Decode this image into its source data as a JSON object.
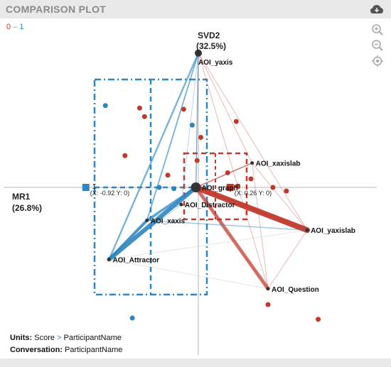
{
  "header": {
    "title": "COMPARISON PLOT",
    "icons": [
      "cloud-download-icon",
      "zoom-in-icon",
      "zoom-out-icon",
      "target-icon"
    ]
  },
  "legend": {
    "low": "0",
    "dash": "–",
    "high": "1",
    "low_color": "#c0392b",
    "high_color": "#2e86c1"
  },
  "footer": {
    "units_label": "Units:",
    "units_value": "Score",
    "units_arrow": ">",
    "units_value2": "ParticipantName",
    "conv_label": "Conversation:",
    "conv_value": "ParticipantName"
  },
  "chart_data": {
    "type": "scatter",
    "axes": {
      "x_label_line1": "MR1",
      "x_label_line2": "(26.8%)",
      "y_label_line1": "SVD2",
      "y_label_line2": "(32.5%)",
      "xlim": [
        -1.6,
        1.6
      ],
      "ylim": [
        -1.3,
        1.1
      ]
    },
    "centers": [
      {
        "name": "1",
        "x": -0.92,
        "y": 0,
        "coord_label": "(X: -0.92 Y: 0)",
        "color": "#2e86c1"
      },
      {
        "name": "0",
        "x": 0.26,
        "y": 0,
        "coord_label": "(X: 0.26 Y: 0)",
        "color": "#c0392b"
      }
    ],
    "aois": [
      {
        "name": "AOI_yaxis",
        "x": 0.0,
        "y": 1.1
      },
      {
        "name": "AOI_xaxislab",
        "x": 0.44,
        "y": 0.2
      },
      {
        "name": "AOI_graph",
        "x": -0.02,
        "y": 0.0
      },
      {
        "name": "AOI_Distractor",
        "x": -0.14,
        "y": -0.14
      },
      {
        "name": "AOI_xaxis",
        "x": -0.42,
        "y": -0.27
      },
      {
        "name": "AOI_yaxislab",
        "x": 0.89,
        "y": -0.35
      },
      {
        "name": "AOI_Attractor",
        "x": -0.73,
        "y": -0.59
      },
      {
        "name": "AOI_Question",
        "x": 0.57,
        "y": -0.83
      }
    ],
    "points_0": [
      [
        -0.48,
        0.65
      ],
      [
        -0.44,
        0.58
      ],
      [
        -0.6,
        0.26
      ],
      [
        -0.12,
        0.64
      ],
      [
        -0.25,
        0.1
      ],
      [
        0.31,
        0.54
      ],
      [
        0.02,
        0.41
      ],
      [
        0.24,
        0.12
      ],
      [
        0.43,
        0.07
      ],
      [
        0.61,
        0.0
      ],
      [
        0.72,
        -0.03
      ],
      [
        -0.01,
        0.22
      ],
      [
        0.32,
        0.01
      ],
      [
        0.57,
        -0.96
      ],
      [
        0.98,
        -1.08
      ]
    ],
    "points_1": [
      [
        -0.76,
        0.67
      ],
      [
        -0.05,
        0.51
      ],
      [
        -0.32,
        0.0
      ],
      [
        -0.54,
        -1.07
      ],
      [
        -0.2,
        -0.01
      ]
    ]
  }
}
